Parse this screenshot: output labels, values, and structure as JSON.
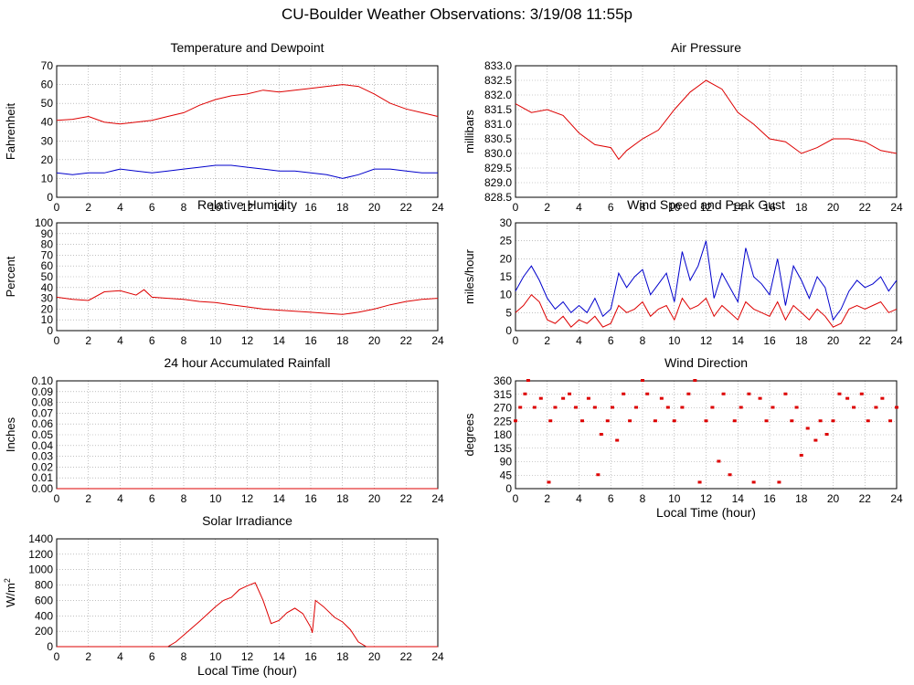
{
  "page": {
    "title": "CU-Boulder Weather Observations: 3/19/08 11:55p"
  },
  "colors": {
    "primary": "#dd0000",
    "secondary": "#0000cc",
    "grid": "#999999",
    "axis": "#000000"
  },
  "chart_data": [
    {
      "id": "temperature",
      "type": "line",
      "title": "Temperature and Dewpoint",
      "xlabel": "",
      "ylabel": "Fahrenheit",
      "xlim": [
        0,
        24
      ],
      "ylim": [
        0,
        70
      ],
      "xticks": [
        "0",
        "2",
        "4",
        "6",
        "8",
        "10",
        "12",
        "14",
        "16",
        "18",
        "20",
        "22",
        "24"
      ],
      "yticks": [
        "0",
        "10",
        "20",
        "30",
        "40",
        "50",
        "60",
        "70"
      ],
      "grid": true,
      "series": [
        {
          "color": "#dd0000",
          "x": [
            0,
            1,
            2,
            3,
            4,
            5,
            6,
            7,
            8,
            9,
            10,
            11,
            12,
            13,
            14,
            15,
            16,
            17,
            18,
            19,
            20,
            21,
            22,
            23,
            24
          ],
          "y": [
            41,
            41.5,
            43,
            40,
            39,
            40,
            41,
            43,
            45,
            49,
            52,
            54,
            55,
            57,
            56,
            57,
            58,
            59,
            60,
            59,
            55,
            50,
            47,
            45,
            43
          ]
        },
        {
          "color": "#0000cc",
          "x": [
            0,
            1,
            2,
            3,
            4,
            5,
            6,
            7,
            8,
            9,
            10,
            11,
            12,
            13,
            14,
            15,
            16,
            17,
            18,
            19,
            20,
            21,
            22,
            23,
            24
          ],
          "y": [
            13,
            12,
            13,
            13,
            15,
            14,
            13,
            14,
            15,
            16,
            17,
            17,
            16,
            15,
            14,
            14,
            13,
            12,
            10,
            12,
            15,
            15,
            14,
            13,
            13
          ]
        }
      ]
    },
    {
      "id": "pressure",
      "type": "line",
      "title": "Air Pressure",
      "xlabel": "",
      "ylabel": "millibars",
      "xlim": [
        0,
        24
      ],
      "ylim": [
        828.5,
        833.0
      ],
      "xticks": [
        "0",
        "2",
        "4",
        "6",
        "8",
        "10",
        "12",
        "14",
        "16",
        "18",
        "20",
        "22",
        "24"
      ],
      "yticks": [
        "828.5",
        "829.0",
        "829.5",
        "830.0",
        "830.5",
        "831.0",
        "831.5",
        "832.0",
        "832.5",
        "833.0"
      ],
      "grid": true,
      "series": [
        {
          "color": "#dd0000",
          "x": [
            0,
            1,
            2,
            3,
            4,
            5,
            6,
            6.5,
            7,
            8,
            9,
            10,
            11,
            12,
            13,
            14,
            15,
            16,
            17,
            18,
            19,
            20,
            21,
            22,
            23,
            24
          ],
          "y": [
            831.7,
            831.4,
            831.5,
            831.3,
            830.7,
            830.3,
            830.2,
            829.8,
            830.1,
            830.5,
            830.8,
            831.5,
            832.1,
            832.5,
            832.2,
            831.4,
            831.0,
            830.5,
            830.4,
            830.0,
            830.2,
            830.5,
            830.5,
            830.4,
            830.1,
            830.0
          ]
        }
      ]
    },
    {
      "id": "humidity",
      "type": "line",
      "title": "Relative Humidity",
      "xlabel": "",
      "ylabel": "Percent",
      "xlim": [
        0,
        24
      ],
      "ylim": [
        0,
        100
      ],
      "xticks": [
        "0",
        "2",
        "4",
        "6",
        "8",
        "10",
        "12",
        "14",
        "16",
        "18",
        "20",
        "22",
        "24"
      ],
      "yticks": [
        "0",
        "10",
        "20",
        "30",
        "40",
        "50",
        "60",
        "70",
        "80",
        "90",
        "100"
      ],
      "grid": true,
      "series": [
        {
          "color": "#dd0000",
          "x": [
            0,
            1,
            2,
            3,
            4,
            5,
            5.5,
            6,
            7,
            8,
            9,
            10,
            11,
            12,
            13,
            14,
            15,
            16,
            17,
            18,
            19,
            20,
            21,
            22,
            23,
            24
          ],
          "y": [
            31,
            29,
            28,
            36,
            37,
            33,
            38,
            31,
            30,
            29,
            27,
            26,
            24,
            22,
            20,
            19,
            18,
            17,
            16,
            15,
            17,
            20,
            24,
            27,
            29,
            30
          ]
        }
      ]
    },
    {
      "id": "wind_speed",
      "type": "line",
      "title": "Wind Speed and Peak Gust",
      "xlabel": "",
      "ylabel": "miles/hour",
      "xlim": [
        0,
        24
      ],
      "ylim": [
        0,
        30
      ],
      "xticks": [
        "0",
        "2",
        "4",
        "6",
        "8",
        "10",
        "12",
        "14",
        "16",
        "18",
        "20",
        "22",
        "24"
      ],
      "yticks": [
        "0",
        "5",
        "10",
        "15",
        "20",
        "25",
        "30"
      ],
      "grid": true,
      "series": [
        {
          "color": "#0000cc",
          "x": [
            0,
            0.5,
            1,
            1.5,
            2,
            2.5,
            3,
            3.5,
            4,
            4.5,
            5,
            5.5,
            6,
            6.5,
            7,
            7.5,
            8,
            8.5,
            9,
            9.5,
            10,
            10.5,
            11,
            11.5,
            12,
            12.5,
            13,
            13.5,
            14,
            14.5,
            15,
            15.5,
            16,
            16.5,
            17,
            17.5,
            18,
            18.5,
            19,
            19.5,
            20,
            20.5,
            21,
            21.5,
            22,
            22.5,
            23,
            23.5,
            24
          ],
          "y": [
            11,
            15,
            18,
            14,
            9,
            6,
            8,
            5,
            7,
            5,
            9,
            4,
            6,
            16,
            12,
            15,
            17,
            10,
            13,
            16,
            8,
            22,
            14,
            18,
            25,
            9,
            16,
            12,
            8,
            23,
            15,
            13,
            10,
            20,
            7,
            18,
            14,
            9,
            15,
            12,
            3,
            6,
            11,
            14,
            12,
            13,
            15,
            11,
            14
          ]
        },
        {
          "color": "#dd0000",
          "x": [
            0,
            0.5,
            1,
            1.5,
            2,
            2.5,
            3,
            3.5,
            4,
            4.5,
            5,
            5.5,
            6,
            6.5,
            7,
            7.5,
            8,
            8.5,
            9,
            9.5,
            10,
            10.5,
            11,
            11.5,
            12,
            12.5,
            13,
            13.5,
            14,
            14.5,
            15,
            15.5,
            16,
            16.5,
            17,
            17.5,
            18,
            18.5,
            19,
            19.5,
            20,
            20.5,
            21,
            21.5,
            22,
            22.5,
            23,
            23.5,
            24
          ],
          "y": [
            5,
            7,
            10,
            8,
            3,
            2,
            4,
            1,
            3,
            2,
            4,
            1,
            2,
            7,
            5,
            6,
            8,
            4,
            6,
            7,
            3,
            9,
            6,
            7,
            9,
            4,
            7,
            5,
            3,
            8,
            6,
            5,
            4,
            8,
            3,
            7,
            5,
            3,
            6,
            4,
            1,
            2,
            6,
            7,
            6,
            7,
            8,
            5,
            6
          ]
        }
      ]
    },
    {
      "id": "rainfall",
      "type": "line",
      "title": "24 hour Accumulated Rainfall",
      "xlabel": "",
      "ylabel": "Inches",
      "xlim": [
        0,
        24
      ],
      "ylim": [
        0,
        0.1
      ],
      "xticks": [
        "0",
        "2",
        "4",
        "6",
        "8",
        "10",
        "12",
        "14",
        "16",
        "18",
        "20",
        "22",
        "24"
      ],
      "yticks": [
        "0.00",
        "0.01",
        "0.02",
        "0.03",
        "0.04",
        "0.05",
        "0.06",
        "0.07",
        "0.08",
        "0.09",
        "0.10"
      ],
      "grid": true,
      "series": [
        {
          "color": "#dd0000",
          "x": [
            0,
            24
          ],
          "y": [
            0,
            0
          ]
        }
      ]
    },
    {
      "id": "wind_direction",
      "type": "scatter",
      "title": "Wind Direction",
      "xlabel": "Local Time (hour)",
      "ylabel": "degrees",
      "xlim": [
        0,
        24
      ],
      "ylim": [
        0,
        360
      ],
      "xticks": [
        "0",
        "2",
        "4",
        "6",
        "8",
        "10",
        "12",
        "14",
        "16",
        "18",
        "20",
        "22",
        "24"
      ],
      "yticks": [
        "0",
        "45",
        "90",
        "135",
        "180",
        "225",
        "270",
        "315",
        "360"
      ],
      "grid": true,
      "series": [
        {
          "color": "#dd0000",
          "x": [
            0,
            0.3,
            0.6,
            0.8,
            1.2,
            1.6,
            2.1,
            2.2,
            2.5,
            3.0,
            3.4,
            3.8,
            4.2,
            4.6,
            5.0,
            5.2,
            5.4,
            5.8,
            6.1,
            6.4,
            6.8,
            7.2,
            7.6,
            8.0,
            8.3,
            8.8,
            9.2,
            9.6,
            10.0,
            10.5,
            10.9,
            11.3,
            11.6,
            12.0,
            12.4,
            12.8,
            13.1,
            13.5,
            13.8,
            14.2,
            14.7,
            15.0,
            15.4,
            15.8,
            16.2,
            16.6,
            17.0,
            17.4,
            17.7,
            18.0,
            18.4,
            18.9,
            19.2,
            19.6,
            20.0,
            20.4,
            20.9,
            21.3,
            21.8,
            22.2,
            22.7,
            23.1,
            23.6,
            24.0
          ],
          "y": [
            225,
            270,
            315,
            360,
            270,
            300,
            20,
            225,
            270,
            300,
            315,
            270,
            225,
            300,
            270,
            45,
            180,
            225,
            270,
            160,
            315,
            225,
            270,
            360,
            315,
            225,
            300,
            270,
            225,
            270,
            315,
            360,
            20,
            225,
            270,
            90,
            315,
            45,
            225,
            270,
            315,
            20,
            300,
            225,
            270,
            20,
            315,
            225,
            270,
            110,
            200,
            160,
            225,
            180,
            225,
            315,
            300,
            270,
            315,
            225,
            270,
            300,
            225,
            270
          ]
        }
      ]
    },
    {
      "id": "solar",
      "type": "line",
      "title": "Solar Irradiance",
      "xlabel": "Local Time (hour)",
      "ylabel": "W/m",
      "ylabel_sup": "2",
      "xlim": [
        0,
        24
      ],
      "ylim": [
        0,
        1400
      ],
      "xticks": [
        "0",
        "2",
        "4",
        "6",
        "8",
        "10",
        "12",
        "14",
        "16",
        "18",
        "20",
        "22",
        "24"
      ],
      "yticks": [
        "0",
        "200",
        "400",
        "600",
        "800",
        "1000",
        "1200",
        "1400"
      ],
      "grid": true,
      "series": [
        {
          "color": "#dd0000",
          "x": [
            0,
            7,
            7.5,
            8,
            9,
            10,
            10.5,
            11,
            11.5,
            12,
            12.5,
            13,
            13.5,
            14,
            14.5,
            15,
            15.5,
            16,
            16.1,
            16.3,
            16.8,
            17.5,
            18,
            18.5,
            19,
            19.5,
            20,
            24
          ],
          "y": [
            0,
            0,
            60,
            150,
            330,
            520,
            600,
            640,
            740,
            790,
            830,
            600,
            300,
            340,
            440,
            500,
            430,
            250,
            180,
            600,
            520,
            380,
            320,
            220,
            60,
            0,
            0,
            0
          ]
        }
      ]
    }
  ]
}
